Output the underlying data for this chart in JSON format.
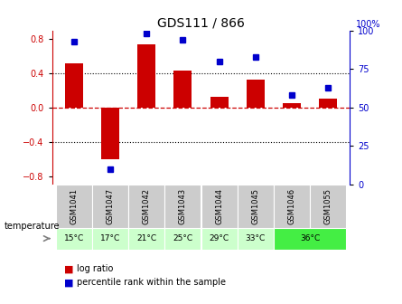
{
  "title": "GDS111 / 866",
  "samples": [
    "GSM1041",
    "GSM1047",
    "GSM1042",
    "GSM1043",
    "GSM1044",
    "GSM1045",
    "GSM1046",
    "GSM1055"
  ],
  "temp_groups": [
    {
      "label": "15°C",
      "cols": [
        0
      ],
      "color": "#ccffcc"
    },
    {
      "label": "17°C",
      "cols": [
        1
      ],
      "color": "#ccffcc"
    },
    {
      "label": "21°C",
      "cols": [
        2
      ],
      "color": "#ccffcc"
    },
    {
      "label": "25°C",
      "cols": [
        3
      ],
      "color": "#ccffcc"
    },
    {
      "label": "29°C",
      "cols": [
        4
      ],
      "color": "#ccffcc"
    },
    {
      "label": "33°C",
      "cols": [
        5
      ],
      "color": "#ccffcc"
    },
    {
      "label": "36°C",
      "cols": [
        6,
        7
      ],
      "color": "#44ee44"
    }
  ],
  "log_ratio": [
    0.52,
    -0.6,
    0.74,
    0.43,
    0.12,
    0.32,
    0.05,
    0.1
  ],
  "percentile": [
    93,
    10,
    98,
    94,
    80,
    83,
    58,
    63
  ],
  "ylim_left": [
    -0.9,
    0.9
  ],
  "ylim_right": [
    0,
    100
  ],
  "yticks_left": [
    -0.8,
    -0.4,
    0.0,
    0.4,
    0.8
  ],
  "yticks_right": [
    0,
    25,
    50,
    75,
    100
  ],
  "bar_color": "#cc0000",
  "dot_color": "#0000cc",
  "bg_color": "#ffffff",
  "sample_bg_color": "#cccccc"
}
